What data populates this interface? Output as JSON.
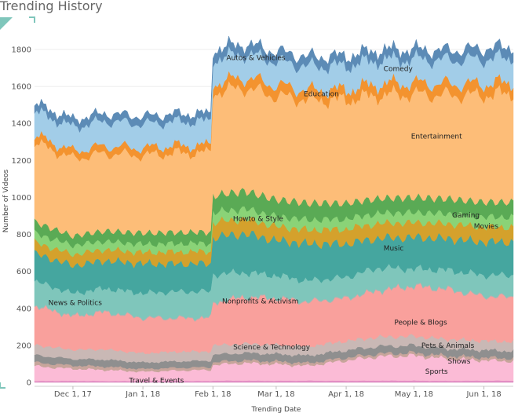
{
  "chart_data": {
    "type": "area",
    "stacked": true,
    "title": "Trending History",
    "xlabel": "Trending Date",
    "ylabel": "Number of Videos",
    "ylim": [
      0,
      1860
    ],
    "yticks": [
      0,
      200,
      400,
      600,
      800,
      1000,
      1200,
      1400,
      1600,
      1800
    ],
    "x_range": [
      "2017-11-14",
      "2018-06-14"
    ],
    "xticks": [
      {
        "date": "2017-12-01",
        "label": "Dec 1, 17"
      },
      {
        "date": "2018-01-01",
        "label": "Jan 1, 18"
      },
      {
        "date": "2018-02-01",
        "label": "Feb 1, 18"
      },
      {
        "date": "2018-03-01",
        "label": "Mar 1, 18"
      },
      {
        "date": "2018-04-01",
        "label": "Apr 1, 18"
      },
      {
        "date": "2018-05-01",
        "label": "May 1, 18"
      },
      {
        "date": "2018-06-01",
        "label": "Jun 1, 18"
      }
    ],
    "grid": true,
    "legend": "none",
    "x": [
      "2017-11-14",
      "2017-12-01",
      "2017-12-15",
      "2018-01-01",
      "2018-01-15",
      "2018-01-31",
      "2018-02-01",
      "2018-02-15",
      "2018-03-01",
      "2018-03-15",
      "2018-04-01",
      "2018-04-15",
      "2018-05-01",
      "2018-05-15",
      "2018-06-01",
      "2018-06-14"
    ],
    "series": [
      {
        "name": "Travel & Events",
        "color": "#e28fc4",
        "values": [
          8,
          9,
          8,
          8,
          9,
          8,
          10,
          10,
          9,
          10,
          9,
          10,
          10,
          9,
          10,
          10
        ]
      },
      {
        "name": "Sports",
        "color": "#fbbbd6",
        "values": [
          80,
          65,
          60,
          50,
          55,
          60,
          85,
          95,
          90,
          80,
          110,
          130,
          135,
          120,
          110,
          105
        ]
      },
      {
        "name": "Shows",
        "color": "#c7a59b",
        "values": [
          20,
          18,
          18,
          15,
          15,
          15,
          15,
          15,
          15,
          15,
          15,
          15,
          15,
          15,
          15,
          15
        ]
      },
      {
        "name": "Pets & Animals",
        "color": "#8f8f8f",
        "values": [
          40,
          35,
          38,
          35,
          35,
          35,
          40,
          40,
          40,
          40,
          40,
          40,
          40,
          40,
          40,
          40
        ]
      },
      {
        "name": "Science & Technology",
        "color": "#c9b8b5",
        "values": [
          55,
          50,
          55,
          50,
          52,
          50,
          50,
          50,
          50,
          50,
          50,
          50,
          50,
          50,
          50,
          50
        ]
      },
      {
        "name": "People & Blogs",
        "color": "#f9a09c",
        "values": [
          210,
          180,
          200,
          190,
          180,
          180,
          230,
          250,
          250,
          240,
          230,
          250,
          270,
          270,
          240,
          240
        ]
      },
      {
        "name": "Nonprofits & Activism",
        "color": "#b0b3b1",
        "values": [
          5,
          5,
          5,
          5,
          5,
          5,
          5,
          5,
          5,
          5,
          5,
          5,
          5,
          5,
          5,
          5
        ]
      },
      {
        "name": "News & Politics",
        "color": "#7fc6bb",
        "values": [
          130,
          120,
          125,
          130,
          140,
          140,
          150,
          130,
          120,
          110,
          110,
          120,
          90,
          100,
          110,
          115
        ]
      },
      {
        "name": "Music",
        "color": "#45a69f",
        "values": [
          150,
          150,
          150,
          160,
          150,
          150,
          200,
          210,
          190,
          200,
          180,
          160,
          170,
          170,
          180,
          180
        ]
      },
      {
        "name": "Movies",
        "color": "#d4a12c",
        "values": [
          60,
          60,
          60,
          60,
          65,
          65,
          80,
          80,
          75,
          75,
          80,
          80,
          80,
          80,
          80,
          80
        ]
      },
      {
        "name": "Gaming",
        "color": "#8ad377",
        "values": [
          50,
          50,
          45,
          45,
          45,
          45,
          55,
          55,
          55,
          55,
          55,
          55,
          55,
          55,
          55,
          55
        ]
      },
      {
        "name": "Howto & Style",
        "color": "#5aaa55",
        "values": [
          60,
          50,
          55,
          60,
          60,
          60,
          90,
          95,
          90,
          90,
          85,
          80,
          80,
          80,
          80,
          80
        ]
      },
      {
        "name": "Entertainment",
        "color": "#fdbd78",
        "values": [
          430,
          420,
          420,
          420,
          430,
          430,
          560,
          560,
          560,
          560,
          560,
          560,
          560,
          560,
          580,
          590
        ]
      },
      {
        "name": "Education",
        "color": "#f3932f",
        "values": [
          40,
          40,
          40,
          40,
          40,
          40,
          50,
          55,
          60,
          50,
          55,
          60,
          60,
          60,
          60,
          60
        ]
      },
      {
        "name": "Comedy",
        "color": "#a2cde8",
        "values": [
          130,
          130,
          135,
          130,
          130,
          130,
          130,
          130,
          130,
          130,
          130,
          130,
          130,
          130,
          135,
          135
        ]
      },
      {
        "name": "Autos & Vehicles",
        "color": "#5c8bb6",
        "values": [
          40,
          40,
          40,
          40,
          40,
          40,
          50,
          50,
          50,
          50,
          50,
          50,
          50,
          50,
          55,
          55
        ]
      }
    ],
    "series_labels": [
      {
        "name": "Autos & Vehicles",
        "date": "2018-02-20",
        "value": 1755
      },
      {
        "name": "Comedy",
        "date": "2018-04-24",
        "value": 1695
      },
      {
        "name": "Education",
        "date": "2018-03-21",
        "value": 1560
      },
      {
        "name": "Entertainment",
        "date": "2018-05-11",
        "value": 1330
      },
      {
        "name": "Gaming",
        "date": "2018-05-24",
        "value": 905
      },
      {
        "name": "Movies",
        "date": "2018-06-02",
        "value": 845
      },
      {
        "name": "Howto & Style",
        "date": "2018-02-21",
        "value": 885
      },
      {
        "name": "Music",
        "date": "2018-04-22",
        "value": 725
      },
      {
        "name": "News & Politics",
        "date": "2017-12-02",
        "value": 430
      },
      {
        "name": "Nonprofits & Activism",
        "date": "2018-02-22",
        "value": 440
      },
      {
        "name": "People & Blogs",
        "date": "2018-05-04",
        "value": 325
      },
      {
        "name": "Science & Technology",
        "date": "2018-02-27",
        "value": 190
      },
      {
        "name": "Pets & Animals",
        "date": "2018-05-16",
        "value": 200
      },
      {
        "name": "Shows",
        "date": "2018-05-21",
        "value": 115
      },
      {
        "name": "Sports",
        "date": "2018-05-11",
        "value": 60
      },
      {
        "name": "Travel & Events",
        "date": "2018-01-07",
        "value": 10
      }
    ]
  }
}
